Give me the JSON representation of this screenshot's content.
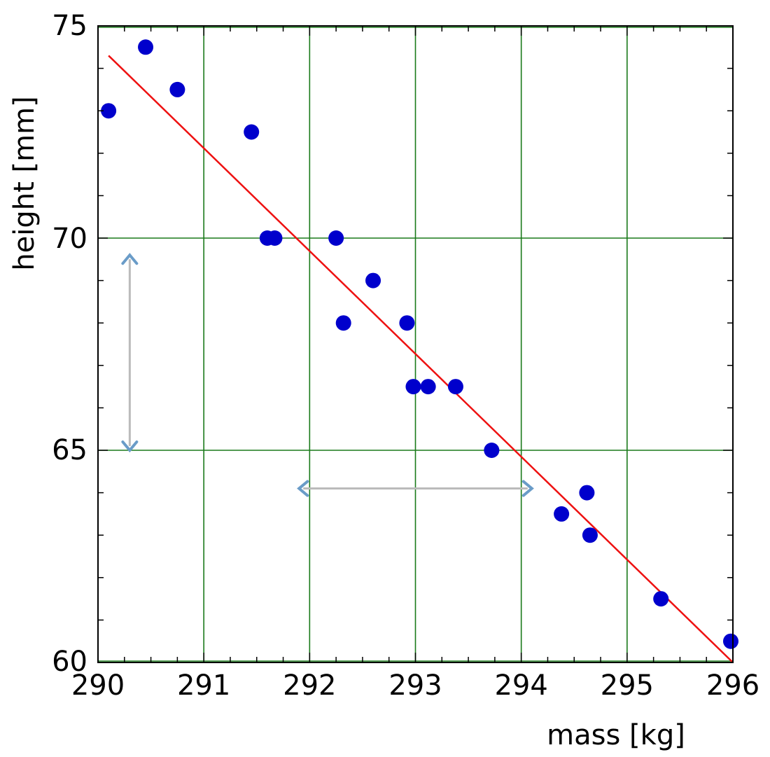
{
  "chart_data": {
    "type": "scatter",
    "title": "",
    "xlabel": "mass  [kg]",
    "ylabel": "height [mm]",
    "xlim": [
      290,
      296
    ],
    "ylim": [
      60,
      75
    ],
    "xticks": [
      "290",
      "291",
      "292",
      "293",
      "294",
      "295",
      "296"
    ],
    "yticks": [
      "60",
      "65",
      "70",
      "75"
    ],
    "grid": true,
    "colors": {
      "points": "#0000cc",
      "fit_line": "#ee1111",
      "grid": "#1a7a1a",
      "arrows": "#6a9cc8"
    },
    "series": [
      {
        "points": [
          [
            290.1,
            73.0
          ],
          [
            290.45,
            74.5
          ],
          [
            290.75,
            73.5
          ],
          [
            291.45,
            72.5
          ],
          [
            291.6,
            70.0
          ],
          [
            291.67,
            70.0
          ],
          [
            292.25,
            70.0
          ],
          [
            292.32,
            68.0
          ],
          [
            292.6,
            69.0
          ],
          [
            292.92,
            68.0
          ],
          [
            292.98,
            66.5
          ],
          [
            293.12,
            66.5
          ],
          [
            293.38,
            66.5
          ],
          [
            293.72,
            65.0
          ],
          [
            294.38,
            63.5
          ],
          [
            294.62,
            64.0
          ],
          [
            294.65,
            63.0
          ],
          [
            295.32,
            61.5
          ],
          [
            295.98,
            60.5
          ]
        ]
      }
    ],
    "fit_line": {
      "x": [
        290.1,
        296.0
      ],
      "y": [
        74.3,
        60.0
      ]
    },
    "annotations": [
      {
        "kind": "vertical-double-arrow",
        "x": 290.3,
        "y_from": 65.0,
        "y_to": 69.6
      },
      {
        "kind": "horizontal-double-arrow",
        "y": 64.1,
        "x_from": 291.9,
        "x_to": 294.1
      }
    ]
  }
}
